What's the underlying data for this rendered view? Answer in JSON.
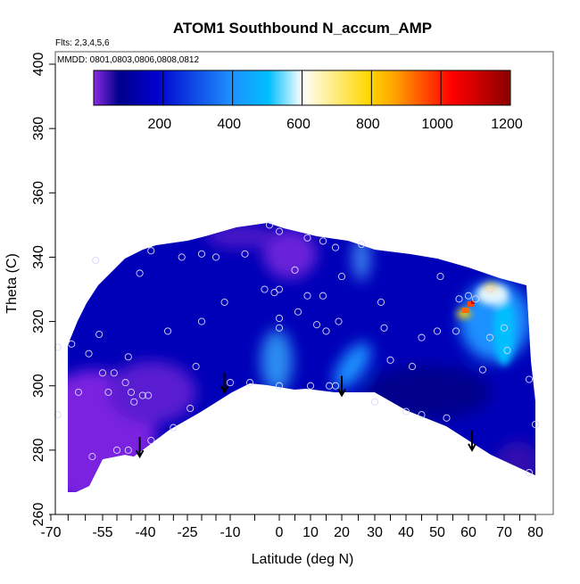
{
  "chart_data": {
    "type": "heatmap",
    "title": "ATOM1 Southbound N_accum_AMP",
    "subtitle_flights": "Flts: 2,3,4,5,6",
    "subtitle_dates": "MMDD: 0801,0803,0806,0808,0812",
    "xlabel": "Latitude (deg N)",
    "ylabel": "Theta (C)",
    "xlim": [
      -70,
      80
    ],
    "ylim": [
      260,
      400
    ],
    "x_tick_labels": [
      "-70",
      "-55",
      "-40",
      "-25",
      "-10",
      "0",
      "10",
      "20",
      "30",
      "40",
      "50",
      "60",
      "70",
      "80"
    ],
    "y_tick_labels": [
      "260",
      "280",
      "300",
      "320",
      "340",
      "360",
      "380",
      "400"
    ],
    "colorbar": {
      "range": [
        0,
        1200
      ],
      "tick_labels": [
        "200",
        "400",
        "600",
        "800",
        "1000",
        "1200"
      ],
      "colors": [
        "#8a2be2",
        "#00008b",
        "#0000cd",
        "#1e90ff",
        "#00bfff",
        "#ffffff",
        "#ffd700",
        "#ffa500",
        "#ff4500",
        "#ff0000",
        "#8b0000"
      ]
    },
    "field_background_value_approx": 150,
    "features": [
      {
        "desc": "low values",
        "lat": -58,
        "theta": 290,
        "value": 20
      },
      {
        "desc": "low values",
        "lat": 5,
        "theta": 340,
        "value": 60
      },
      {
        "desc": "elevated",
        "lat": 0,
        "theta": 305,
        "value": 380
      },
      {
        "desc": "elevated",
        "lat": 22,
        "theta": 305,
        "value": 420
      },
      {
        "desc": "peak",
        "lat": 62,
        "theta": 325,
        "value": 1100
      }
    ],
    "arrows_lat": [
      -42,
      -12,
      20,
      61
    ],
    "sample_points": [
      [
        -2,
        350
      ],
      [
        0,
        348
      ],
      [
        9,
        346
      ],
      [
        14,
        345
      ],
      [
        18,
        343
      ],
      [
        26,
        344
      ],
      [
        -38,
        342
      ],
      [
        -20,
        341
      ],
      [
        -27,
        340
      ],
      [
        -15,
        340
      ],
      [
        -7,
        341
      ],
      [
        -57,
        339
      ],
      [
        -42,
        335
      ],
      [
        5,
        336
      ],
      [
        20,
        334
      ],
      [
        51,
        334
      ],
      [
        -3,
        330
      ],
      [
        0,
        330
      ],
      [
        -1,
        329
      ],
      [
        9,
        328
      ],
      [
        14,
        328
      ],
      [
        32,
        326
      ],
      [
        -12,
        326
      ],
      [
        -20,
        320
      ],
      [
        6,
        323
      ],
      [
        12,
        319
      ],
      [
        -32,
        317
      ],
      [
        -56,
        316
      ],
      [
        -64,
        313
      ],
      [
        -68,
        312
      ],
      [
        -59,
        310
      ],
      [
        -46,
        309
      ],
      [
        0,
        318
      ],
      [
        0,
        321
      ],
      [
        19,
        320
      ],
      [
        15,
        317
      ],
      [
        45,
        315
      ],
      [
        42,
        306
      ],
      [
        35,
        308
      ],
      [
        33,
        318
      ],
      [
        -22,
        306
      ],
      [
        -51,
        304
      ],
      [
        -55,
        304
      ],
      [
        -62,
        298
      ],
      [
        -53,
        298
      ],
      [
        -45,
        298
      ],
      [
        -44,
        295
      ],
      [
        -47,
        301
      ],
      [
        -41,
        297
      ],
      [
        -39,
        297
      ],
      [
        -10,
        301
      ],
      [
        -6,
        301
      ],
      [
        0,
        300
      ],
      [
        10,
        300
      ],
      [
        16,
        300
      ],
      [
        18,
        300
      ],
      [
        30,
        295
      ],
      [
        40,
        292
      ],
      [
        45,
        291
      ],
      [
        53,
        290
      ],
      [
        80,
        288
      ],
      [
        -58,
        278
      ],
      [
        -50,
        280
      ],
      [
        -46,
        280
      ],
      [
        -38,
        283
      ],
      [
        -30,
        287
      ],
      [
        -24,
        293
      ],
      [
        -68,
        291
      ],
      [
        78,
        273
      ],
      [
        57,
        327
      ],
      [
        60,
        328
      ],
      [
        66,
        330
      ],
      [
        62,
        327
      ],
      [
        70,
        318
      ],
      [
        66,
        315
      ],
      [
        71,
        311
      ],
      [
        64,
        305
      ],
      [
        50,
        317
      ],
      [
        56,
        317
      ],
      [
        78,
        302
      ]
    ]
  }
}
